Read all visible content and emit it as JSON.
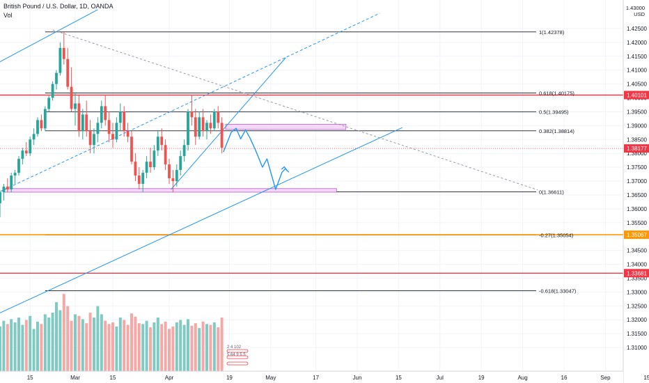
{
  "header": {
    "title": "British Pound / U.S. Dollar, 1D, OANDA",
    "volume_label": "Vol"
  },
  "axis": {
    "currency": "USD",
    "top_tick": "1.43000"
  },
  "colors": {
    "up": "#26a69a",
    "down": "#ef5350",
    "up_volume": "#7fcbc3",
    "down_volume": "#f5a8a6",
    "trendline": "#2196f3",
    "fib_line": "#131722",
    "red_level": "#f23645",
    "orange_level": "#ff9800",
    "zone_fill": "#f3d9f7",
    "zone_border": "#b45cc9",
    "grid": "#f0f3fa"
  },
  "chart_data": {
    "type": "candlestick",
    "title": "British Pound / U.S. Dollar, 1D, OANDA",
    "ylim": [
      1.305,
      1.43
    ],
    "y_ticks": [
      "1.31000",
      "1.31500",
      "1.32000",
      "1.32500",
      "1.33000",
      "1.33500",
      "1.34000",
      "1.34500",
      "1.35000",
      "1.35500",
      "1.36000",
      "1.36500",
      "1.37000",
      "1.37500",
      "1.38000",
      "1.38500",
      "1.39000",
      "1.39500",
      "1.40000",
      "1.40500",
      "1.41000",
      "1.41500",
      "1.42000",
      "1.42500"
    ],
    "x_ticks": [
      "15",
      "Mar",
      "15",
      "Apr",
      "19",
      "May",
      "17",
      "Jun",
      "15",
      "Jul",
      "19",
      "Aug",
      "16",
      "Sep",
      "15"
    ],
    "x_tick_index": [
      8,
      20,
      30,
      45,
      61,
      72,
      84,
      95,
      106,
      117,
      128,
      139,
      150,
      161,
      172
    ],
    "candles": [
      {
        "o": 1.362,
        "h": 1.366,
        "l": 1.357,
        "c": 1.366
      },
      {
        "o": 1.366,
        "h": 1.369,
        "l": 1.363,
        "c": 1.368
      },
      {
        "o": 1.368,
        "h": 1.371,
        "l": 1.366,
        "c": 1.367
      },
      {
        "o": 1.367,
        "h": 1.373,
        "l": 1.366,
        "c": 1.372
      },
      {
        "o": 1.372,
        "h": 1.374,
        "l": 1.369,
        "c": 1.373
      },
      {
        "o": 1.373,
        "h": 1.379,
        "l": 1.372,
        "c": 1.378
      },
      {
        "o": 1.378,
        "h": 1.382,
        "l": 1.376,
        "c": 1.381
      },
      {
        "o": 1.381,
        "h": 1.384,
        "l": 1.379,
        "c": 1.38
      },
      {
        "o": 1.38,
        "h": 1.386,
        "l": 1.379,
        "c": 1.385
      },
      {
        "o": 1.385,
        "h": 1.389,
        "l": 1.383,
        "c": 1.387
      },
      {
        "o": 1.387,
        "h": 1.393,
        "l": 1.386,
        "c": 1.392
      },
      {
        "o": 1.392,
        "h": 1.394,
        "l": 1.388,
        "c": 1.389
      },
      {
        "o": 1.389,
        "h": 1.397,
        "l": 1.388,
        "c": 1.396
      },
      {
        "o": 1.396,
        "h": 1.401,
        "l": 1.395,
        "c": 1.4
      },
      {
        "o": 1.4,
        "h": 1.406,
        "l": 1.399,
        "c": 1.405
      },
      {
        "o": 1.405,
        "h": 1.41,
        "l": 1.403,
        "c": 1.409
      },
      {
        "o": 1.409,
        "h": 1.42,
        "l": 1.408,
        "c": 1.418
      },
      {
        "o": 1.418,
        "h": 1.424,
        "l": 1.412,
        "c": 1.414
      },
      {
        "o": 1.414,
        "h": 1.418,
        "l": 1.403,
        "c": 1.404
      },
      {
        "o": 1.404,
        "h": 1.411,
        "l": 1.395,
        "c": 1.396
      },
      {
        "o": 1.396,
        "h": 1.402,
        "l": 1.39,
        "c": 1.398
      },
      {
        "o": 1.398,
        "h": 1.401,
        "l": 1.386,
        "c": 1.388
      },
      {
        "o": 1.388,
        "h": 1.396,
        "l": 1.385,
        "c": 1.394
      },
      {
        "o": 1.394,
        "h": 1.399,
        "l": 1.386,
        "c": 1.388
      },
      {
        "o": 1.388,
        "h": 1.392,
        "l": 1.38,
        "c": 1.383
      },
      {
        "o": 1.383,
        "h": 1.389,
        "l": 1.38,
        "c": 1.387
      },
      {
        "o": 1.387,
        "h": 1.393,
        "l": 1.384,
        "c": 1.391
      },
      {
        "o": 1.391,
        "h": 1.399,
        "l": 1.389,
        "c": 1.397
      },
      {
        "o": 1.397,
        "h": 1.401,
        "l": 1.39,
        "c": 1.392
      },
      {
        "o": 1.392,
        "h": 1.395,
        "l": 1.384,
        "c": 1.387
      },
      {
        "o": 1.387,
        "h": 1.391,
        "l": 1.382,
        "c": 1.385
      },
      {
        "o": 1.385,
        "h": 1.393,
        "l": 1.384,
        "c": 1.391
      },
      {
        "o": 1.391,
        "h": 1.398,
        "l": 1.388,
        "c": 1.395
      },
      {
        "o": 1.395,
        "h": 1.397,
        "l": 1.386,
        "c": 1.388
      },
      {
        "o": 1.388,
        "h": 1.391,
        "l": 1.384,
        "c": 1.386
      },
      {
        "o": 1.386,
        "h": 1.388,
        "l": 1.376,
        "c": 1.377
      },
      {
        "o": 1.377,
        "h": 1.38,
        "l": 1.37,
        "c": 1.372
      },
      {
        "o": 1.372,
        "h": 1.375,
        "l": 1.367,
        "c": 1.369
      },
      {
        "o": 1.369,
        "h": 1.374,
        "l": 1.366,
        "c": 1.373
      },
      {
        "o": 1.373,
        "h": 1.379,
        "l": 1.371,
        "c": 1.377
      },
      {
        "o": 1.377,
        "h": 1.382,
        "l": 1.373,
        "c": 1.375
      },
      {
        "o": 1.375,
        "h": 1.383,
        "l": 1.374,
        "c": 1.381
      },
      {
        "o": 1.381,
        "h": 1.388,
        "l": 1.379,
        "c": 1.386
      },
      {
        "o": 1.386,
        "h": 1.389,
        "l": 1.381,
        "c": 1.383
      },
      {
        "o": 1.383,
        "h": 1.385,
        "l": 1.374,
        "c": 1.376
      },
      {
        "o": 1.376,
        "h": 1.378,
        "l": 1.369,
        "c": 1.371
      },
      {
        "o": 1.371,
        "h": 1.374,
        "l": 1.366,
        "c": 1.37
      },
      {
        "o": 1.37,
        "h": 1.376,
        "l": 1.368,
        "c": 1.374
      },
      {
        "o": 1.374,
        "h": 1.381,
        "l": 1.372,
        "c": 1.379
      },
      {
        "o": 1.379,
        "h": 1.385,
        "l": 1.377,
        "c": 1.383
      },
      {
        "o": 1.383,
        "h": 1.396,
        "l": 1.381,
        "c": 1.395
      },
      {
        "o": 1.395,
        "h": 1.401,
        "l": 1.39,
        "c": 1.393
      },
      {
        "o": 1.393,
        "h": 1.396,
        "l": 1.383,
        "c": 1.386
      },
      {
        "o": 1.386,
        "h": 1.395,
        "l": 1.385,
        "c": 1.393
      },
      {
        "o": 1.393,
        "h": 1.396,
        "l": 1.386,
        "c": 1.388
      },
      {
        "o": 1.388,
        "h": 1.392,
        "l": 1.385,
        "c": 1.391
      },
      {
        "o": 1.391,
        "h": 1.394,
        "l": 1.387,
        "c": 1.389
      },
      {
        "o": 1.389,
        "h": 1.396,
        "l": 1.388,
        "c": 1.395
      },
      {
        "o": 1.395,
        "h": 1.397,
        "l": 1.389,
        "c": 1.391
      },
      {
        "o": 1.391,
        "h": 1.393,
        "l": 1.38,
        "c": 1.382
      }
    ],
    "volume_ylim": [
      0,
      120
    ],
    "volume": [
      55,
      62,
      58,
      64,
      60,
      66,
      57,
      63,
      68,
      52,
      61,
      58,
      70,
      66,
      72,
      85,
      75,
      95,
      80,
      62,
      70,
      68,
      64,
      59,
      72,
      66,
      80,
      70,
      62,
      58,
      60,
      55,
      66,
      63,
      57,
      71,
      67,
      59,
      58,
      62,
      54,
      60,
      66,
      58,
      61,
      52,
      55,
      60,
      63,
      57,
      64,
      56,
      59,
      53,
      61,
      58,
      57,
      60,
      54,
      66
    ]
  },
  "fib_levels": [
    {
      "value": 1.42378,
      "label": "1(1.42378)"
    },
    {
      "value": 1.40175,
      "label": "0.618(1.40175)"
    },
    {
      "value": 1.39495,
      "label": "0.5(1.39495)"
    },
    {
      "value": 1.38814,
      "label": "0.382(1.38814)"
    },
    {
      "value": 1.36611,
      "label": "0(1.36611)"
    },
    {
      "value": 1.35054,
      "label": "-0.27(1.35054)"
    },
    {
      "value": 1.33047,
      "label": "-0.618(1.33047)"
    }
  ],
  "price_tags": [
    {
      "label": "1.40101",
      "value": 1.40101,
      "kind": "red"
    },
    {
      "label": "1.38177",
      "value": 1.38177,
      "kind": "red-dotted"
    },
    {
      "label": "1.35067",
      "value": 1.35067,
      "kind": "orange"
    },
    {
      "label": "1.33681",
      "value": 1.33681,
      "kind": "red"
    }
  ],
  "volume_readout": [
    "2",
    "4",
    "102",
    "5",
    "64",
    "9",
    "5",
    "5"
  ]
}
